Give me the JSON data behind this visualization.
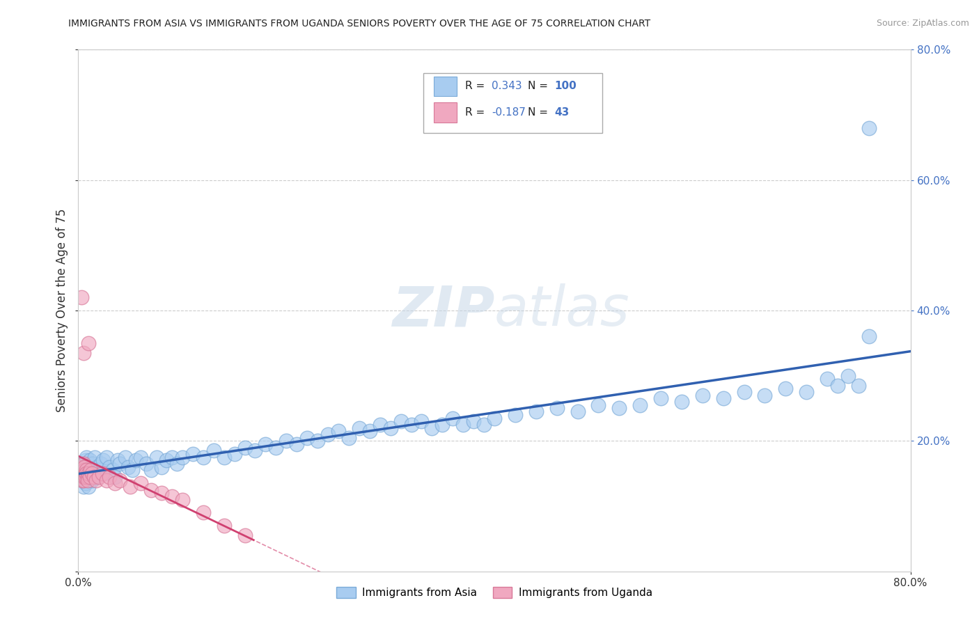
{
  "title": "IMMIGRANTS FROM ASIA VS IMMIGRANTS FROM UGANDA SENIORS POVERTY OVER THE AGE OF 75 CORRELATION CHART",
  "source": "Source: ZipAtlas.com",
  "ylabel": "Seniors Poverty Over the Age of 75",
  "xlim": [
    0.0,
    0.8
  ],
  "ylim": [
    0.0,
    0.8
  ],
  "legend_entries": [
    {
      "label": "Immigrants from Asia",
      "color": "#a8ccf0",
      "edge": "#7aaad8",
      "R": 0.343,
      "N": 100
    },
    {
      "label": "Immigrants from Uganda",
      "color": "#f0a8c0",
      "edge": "#d87898",
      "R": -0.187,
      "N": 43
    }
  ],
  "watermark": "ZIPatlas",
  "asia_color": "#a8ccf0",
  "asia_edge_color": "#7aaad8",
  "uganda_color": "#f0a8c0",
  "uganda_edge_color": "#d87898",
  "asia_line_color": "#3060b0",
  "uganda_line_color": "#d04070",
  "grid_color": "#cccccc",
  "plot_bg": "#ffffff",
  "fig_bg": "#ffffff",
  "right_tick_color": "#4472c4",
  "asia_scatter_x": [
    0.003,
    0.004,
    0.005,
    0.005,
    0.006,
    0.006,
    0.007,
    0.007,
    0.007,
    0.008,
    0.008,
    0.008,
    0.009,
    0.009,
    0.01,
    0.01,
    0.01,
    0.011,
    0.011,
    0.012,
    0.013,
    0.014,
    0.015,
    0.016,
    0.017,
    0.018,
    0.02,
    0.022,
    0.024,
    0.025,
    0.027,
    0.03,
    0.033,
    0.035,
    0.038,
    0.04,
    0.045,
    0.048,
    0.052,
    0.055,
    0.06,
    0.065,
    0.07,
    0.075,
    0.08,
    0.085,
    0.09,
    0.095,
    0.1,
    0.11,
    0.12,
    0.13,
    0.14,
    0.15,
    0.16,
    0.17,
    0.18,
    0.19,
    0.2,
    0.21,
    0.22,
    0.23,
    0.24,
    0.25,
    0.26,
    0.27,
    0.28,
    0.29,
    0.3,
    0.31,
    0.32,
    0.33,
    0.34,
    0.35,
    0.36,
    0.37,
    0.38,
    0.39,
    0.4,
    0.42,
    0.44,
    0.46,
    0.48,
    0.5,
    0.52,
    0.54,
    0.56,
    0.58,
    0.6,
    0.62,
    0.64,
    0.66,
    0.68,
    0.7,
    0.72,
    0.73,
    0.74,
    0.75,
    0.76,
    0.76
  ],
  "asia_scatter_y": [
    0.145,
    0.155,
    0.13,
    0.16,
    0.14,
    0.165,
    0.135,
    0.15,
    0.17,
    0.145,
    0.16,
    0.175,
    0.14,
    0.155,
    0.13,
    0.15,
    0.165,
    0.145,
    0.17,
    0.155,
    0.14,
    0.165,
    0.15,
    0.175,
    0.145,
    0.16,
    0.155,
    0.165,
    0.17,
    0.15,
    0.175,
    0.16,
    0.155,
    0.145,
    0.17,
    0.165,
    0.175,
    0.16,
    0.155,
    0.17,
    0.175,
    0.165,
    0.155,
    0.175,
    0.16,
    0.17,
    0.175,
    0.165,
    0.175,
    0.18,
    0.175,
    0.185,
    0.175,
    0.18,
    0.19,
    0.185,
    0.195,
    0.19,
    0.2,
    0.195,
    0.205,
    0.2,
    0.21,
    0.215,
    0.205,
    0.22,
    0.215,
    0.225,
    0.22,
    0.23,
    0.225,
    0.23,
    0.22,
    0.225,
    0.235,
    0.225,
    0.23,
    0.225,
    0.235,
    0.24,
    0.245,
    0.25,
    0.245,
    0.255,
    0.25,
    0.255,
    0.265,
    0.26,
    0.27,
    0.265,
    0.275,
    0.27,
    0.28,
    0.275,
    0.295,
    0.285,
    0.3,
    0.285,
    0.36,
    0.68
  ],
  "uganda_scatter_x": [
    0.002,
    0.003,
    0.003,
    0.004,
    0.004,
    0.004,
    0.005,
    0.005,
    0.005,
    0.005,
    0.005,
    0.005,
    0.006,
    0.006,
    0.006,
    0.007,
    0.007,
    0.008,
    0.008,
    0.009,
    0.009,
    0.01,
    0.01,
    0.011,
    0.012,
    0.013,
    0.015,
    0.017,
    0.02,
    0.023,
    0.027,
    0.03,
    0.035,
    0.04,
    0.05,
    0.06,
    0.07,
    0.08,
    0.09,
    0.1,
    0.12,
    0.14,
    0.16
  ],
  "uganda_scatter_y": [
    0.155,
    0.145,
    0.42,
    0.15,
    0.14,
    0.16,
    0.145,
    0.155,
    0.165,
    0.14,
    0.335,
    0.15,
    0.145,
    0.155,
    0.16,
    0.15,
    0.145,
    0.155,
    0.15,
    0.145,
    0.14,
    0.35,
    0.15,
    0.145,
    0.155,
    0.15,
    0.145,
    0.14,
    0.145,
    0.15,
    0.14,
    0.145,
    0.135,
    0.14,
    0.13,
    0.135,
    0.125,
    0.12,
    0.115,
    0.11,
    0.09,
    0.07,
    0.055
  ]
}
